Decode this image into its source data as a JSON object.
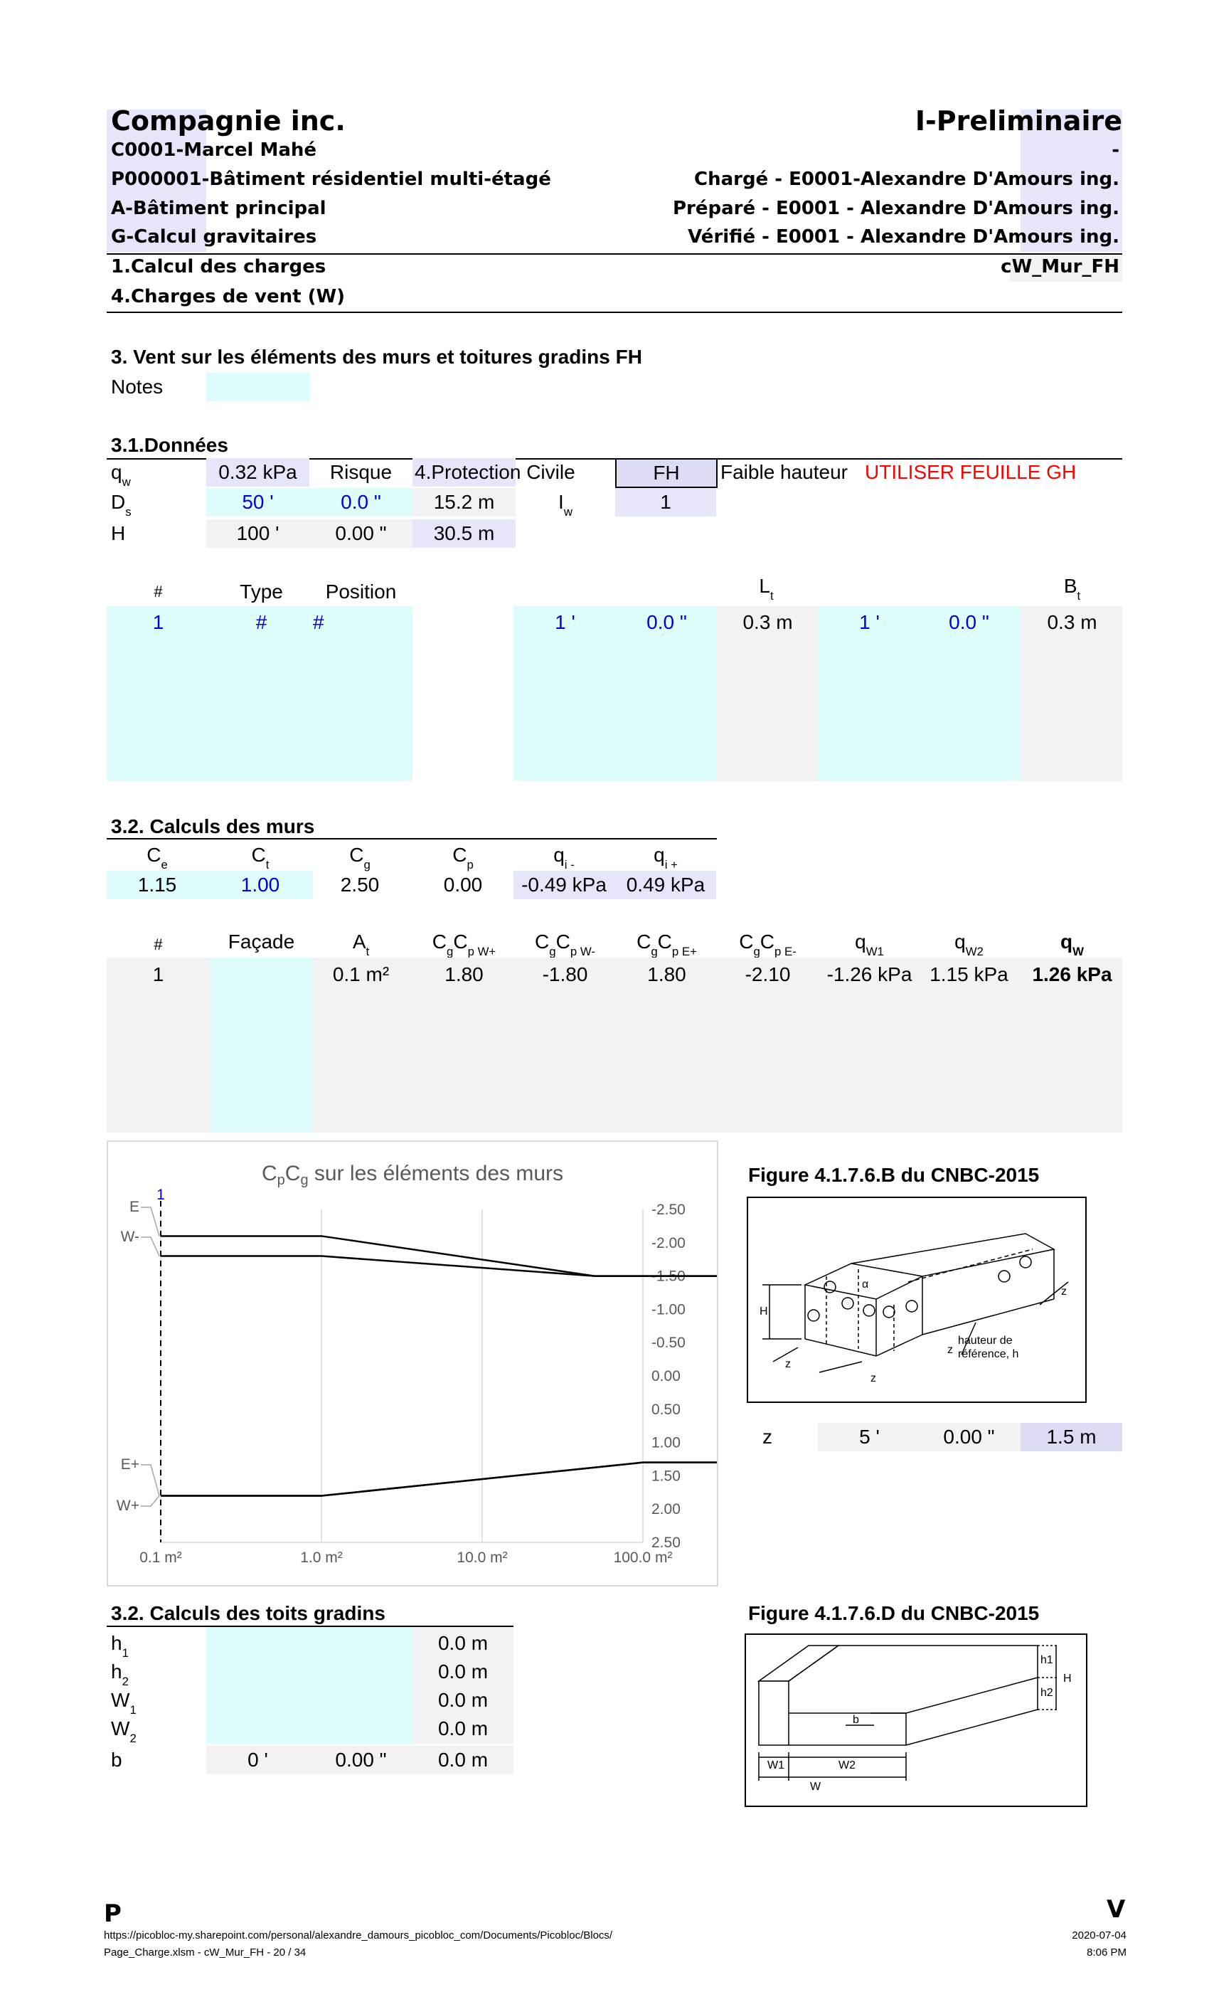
{
  "header": {
    "company": "Compagnie inc.",
    "status": "I-Preliminaire",
    "client": "C0001-Marcel Mahé",
    "dash": "-",
    "project": "P000001-Bâtiment résidentiel multi-étagé",
    "charge": "Chargé - E0001-Alexandre D'Amours ing.",
    "building": "A-Bâtiment principal",
    "prepared": "Préparé - E0001 - Alexandre D'Amours ing.",
    "calc": "G-Calcul gravitaires",
    "verified": "Vérifié - E0001 - Alexandre D'Amours ing.",
    "section1": "1.Calcul des charges",
    "sheet": "cW_Mur_FH",
    "section2": "4.Charges de vent (W)"
  },
  "title": "3. Vent sur les éléments des murs et toitures gradins FH",
  "notes_label": "Notes",
  "donnees": {
    "heading": "3.1.Données",
    "qw_label": "q",
    "qw_sub": "w",
    "qw": "0.32 kPa",
    "risque_label": "Risque",
    "risque": "4.Protection Civile",
    "fh": "FH",
    "faible": "Faible hauteur",
    "warning": "UTILISER FEUILLE GH",
    "ds_label": "D",
    "ds_sub": "s",
    "ds_ft": "50 '",
    "ds_in": "0.0 \"",
    "ds_m": "15.2 m",
    "iw_label": "I",
    "iw_sub": "w",
    "iw": "1",
    "h_label": "H",
    "h_ft": "100 '",
    "h_in": "0.00 \"",
    "h_m": "30.5 m"
  },
  "elements": {
    "headers": [
      "#",
      "Type",
      "Position",
      "L",
      "B"
    ],
    "lt_sub": "t",
    "bt_sub": "t",
    "row": [
      "1",
      "#",
      "#",
      "1 '",
      "0.0 \"",
      "0.3 m",
      "1 '",
      "0.0 \"",
      "0.3 m"
    ]
  },
  "murs": {
    "heading": "3.2. Calculs des murs",
    "coef_labels": [
      [
        "C",
        "e"
      ],
      [
        "C",
        "t"
      ],
      [
        "C",
        "g"
      ],
      [
        "C",
        "p"
      ],
      [
        "q",
        "i -"
      ],
      [
        "q",
        "i +"
      ]
    ],
    "coef_values": [
      "1.15",
      "1.00",
      "2.50",
      "0.00",
      "-0.49 kPa",
      "0.49 kPa"
    ],
    "table_headers": [
      "#",
      "Façade"
    ],
    "at_label": [
      "A",
      "t"
    ],
    "cgcp_labels": [
      "p W+",
      "p W-",
      "p E+",
      "p E-"
    ],
    "qw_labels": [
      [
        "q",
        "W1"
      ],
      [
        "q",
        "W2"
      ],
      [
        "q",
        "W"
      ]
    ],
    "row": [
      "1",
      "",
      "0.1 m²",
      "1.80",
      "-1.80",
      "1.80",
      "-2.10",
      "-1.26 kPa",
      "1.15 kPa",
      "1.26 kPa"
    ]
  },
  "chart_data": {
    "type": "line",
    "title": "CpCg sur les éléments des murs",
    "title_parts": [
      [
        "C",
        ""
      ],
      [
        "p",
        "sub"
      ],
      [
        "C",
        ""
      ],
      [
        "g",
        "sub"
      ],
      [
        " sur les éléments des murs",
        ""
      ]
    ],
    "x_scale": "log",
    "x_ticks": [
      "0.1 m²",
      "1.0 m²",
      "10.0 m²",
      "100.0 m²"
    ],
    "y_ticks": [
      "-2.50",
      "-2.00",
      "-1.50",
      "-1.00",
      "-0.50",
      "0.00",
      "0.50",
      "1.00",
      "1.50",
      "2.00",
      "2.50"
    ],
    "ylim": [
      -2.5,
      2.5
    ],
    "y_reversed": true,
    "y_axis_side": "right",
    "series": [
      {
        "name": "E",
        "points": [
          [
            0.1,
            -2.1
          ],
          [
            1,
            -2.1
          ],
          [
            50,
            -1.5
          ],
          [
            500,
            -1.5
          ]
        ]
      },
      {
        "name": "W-",
        "points": [
          [
            0.1,
            -1.8
          ],
          [
            1,
            -1.8
          ],
          [
            50,
            -1.5
          ],
          [
            500,
            -1.5
          ]
        ]
      },
      {
        "name": "E+",
        "points": [
          [
            0.1,
            1.8
          ],
          [
            1,
            1.8
          ],
          [
            100,
            1.3
          ],
          [
            500,
            1.3
          ]
        ]
      },
      {
        "name": "W+",
        "points": [
          [
            0.1,
            1.8
          ],
          [
            1,
            1.8
          ],
          [
            100,
            1.3
          ],
          [
            500,
            1.3
          ]
        ]
      }
    ],
    "marker": {
      "label": "1",
      "x": 0.1
    }
  },
  "fig_b": {
    "caption": "Figure 4.1.7.6.B du CNBC-2015",
    "label_ref": "hauteur de",
    "label_ref2": "référence, h",
    "h": "H",
    "z": "z",
    "alpha": "α"
  },
  "z_row": {
    "label": "z",
    "ft": "5 '",
    "in": "0.00 \"",
    "m": "1.5 m"
  },
  "toits": {
    "heading": "3.2. Calculs des toits gradins",
    "rows": [
      {
        "l": "h",
        "s": "1",
        "v": "0.0 m"
      },
      {
        "l": "h",
        "s": "2",
        "v": "0.0 m"
      },
      {
        "l": "W",
        "s": "1",
        "v": "0.0 m"
      },
      {
        "l": "W",
        "s": "2",
        "v": "0.0 m"
      }
    ],
    "b_label": "b",
    "b_ft": "0 '",
    "b_in": "0.00 \"",
    "b_m": "0.0 m"
  },
  "fig_d": {
    "caption": "Figure 4.1.7.6.D du CNBC-2015",
    "h1": "h1",
    "h2": "h2",
    "H": "H",
    "b": "b",
    "W1": "W1",
    "W2": "W2",
    "W": "W"
  },
  "footer": {
    "logo_left": "P",
    "logo_right": "V",
    "url": "https://picobloc-my.sharepoint.com/personal/alexandre_damours_picobloc_com/Documents/Picobloc/Blocs/",
    "file": "Page_Charge.xlsm - cW_Mur_FH - 20 / 34",
    "date": "2020-07-04",
    "time": "8:06 PM"
  }
}
